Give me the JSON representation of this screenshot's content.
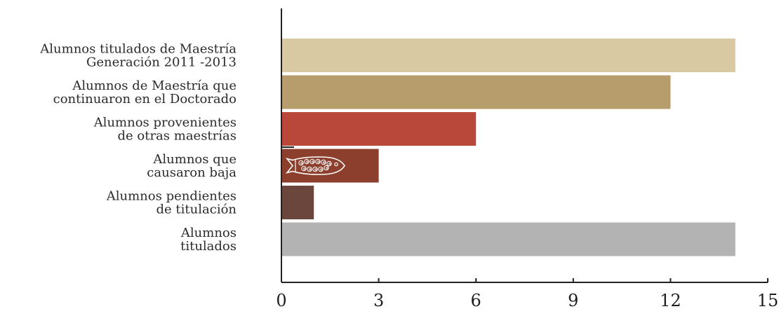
{
  "chart_data": {
    "type": "bar",
    "orientation": "horizontal",
    "categories": [
      [
        "Alumnos titulados de Maestría",
        "Generación 2011 -2013"
      ],
      [
        "Alumnos de Maestría que",
        "continuaron en el Doctorado"
      ],
      [
        "Alumnos provenientes",
        "de otras maestrías"
      ],
      [
        "Alumnos que",
        "causaron baja"
      ],
      [
        "Alumnos pendientes",
        "de titulación"
      ],
      [
        "Alumnos",
        "titulados"
      ]
    ],
    "values": [
      14,
      12,
      6,
      3,
      1,
      14
    ],
    "colors": [
      "#d8c9a3",
      "#b79c6c",
      "#b9473a",
      "#8c3f2c",
      "#6a463c",
      "#b3b3b3"
    ],
    "xlim": [
      0,
      15
    ],
    "xticks": [
      0,
      3,
      6,
      9,
      12,
      15
    ],
    "xtick_labels": [
      "0",
      "3",
      "6",
      "9",
      "12",
      "15"
    ],
    "grid": false,
    "legend": "none",
    "annotations": [
      {
        "type": "icon",
        "name": "fish-icon",
        "category_index": 3
      }
    ],
    "axis_color": "#222222"
  }
}
